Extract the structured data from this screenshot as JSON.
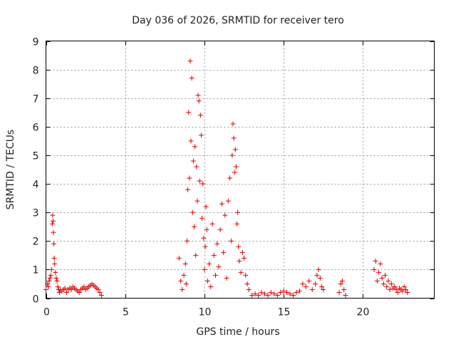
{
  "chart_data": {
    "type": "scatter",
    "title": "Day 036 of 2026, SRMTID for receiver tero",
    "xlabel": "GPS time / hours",
    "ylabel": "SRMTID / TECUs",
    "xlim": [
      0,
      24.5
    ],
    "ylim": [
      0,
      9
    ],
    "xticks": [
      0,
      5,
      10,
      15,
      20
    ],
    "yticks": [
      0,
      1,
      2,
      3,
      4,
      5,
      6,
      7,
      8,
      9
    ],
    "grid": true,
    "legend": "none",
    "marker": "+",
    "color": "#e00000",
    "series": [
      {
        "x": [
          0.0,
          0.1,
          0.15,
          0.2,
          0.25,
          0.3,
          0.35,
          0.4,
          0.42,
          0.45,
          0.47,
          0.5,
          0.52,
          0.55,
          0.6,
          0.65,
          0.7,
          0.75,
          0.8,
          0.85,
          0.9,
          1.0,
          1.1,
          1.2,
          1.3,
          1.4,
          1.5,
          1.6,
          1.7,
          1.8,
          1.9,
          2.0,
          2.1,
          2.2,
          2.3,
          2.4,
          2.5,
          2.6,
          2.7,
          2.8,
          2.9,
          3.0,
          3.1,
          3.2,
          3.3,
          3.4,
          3.5,
          8.4,
          8.5,
          8.6,
          8.7,
          8.8,
          8.85,
          8.9,
          8.95,
          9.0,
          9.05,
          9.1,
          9.15,
          9.2,
          9.25,
          9.3,
          9.35,
          9.4,
          9.45,
          9.5,
          9.55,
          9.6,
          9.65,
          9.7,
          9.75,
          9.8,
          9.85,
          9.9,
          9.95,
          10.0,
          10.05,
          10.1,
          10.15,
          10.2,
          10.3,
          10.4,
          10.5,
          10.6,
          10.7,
          10.8,
          10.9,
          11.0,
          11.1,
          11.2,
          11.3,
          11.4,
          11.5,
          11.6,
          11.7,
          11.75,
          11.8,
          11.85,
          11.9,
          11.95,
          12.0,
          12.05,
          12.1,
          12.15,
          12.2,
          12.3,
          12.4,
          12.5,
          12.6,
          12.7,
          12.8,
          13.0,
          13.2,
          13.4,
          13.6,
          13.8,
          14.0,
          14.2,
          14.4,
          14.6,
          14.8,
          15.0,
          15.2,
          15.4,
          15.6,
          15.8,
          16.0,
          16.2,
          16.4,
          16.6,
          16.8,
          17.0,
          17.1,
          17.2,
          17.3,
          17.4,
          17.5,
          18.5,
          18.6,
          18.7,
          18.8,
          18.9,
          20.7,
          20.8,
          20.9,
          21.0,
          21.1,
          21.2,
          21.3,
          21.4,
          21.5,
          21.6,
          21.7,
          21.8,
          21.9,
          22.0,
          22.1,
          22.2,
          22.3,
          22.4,
          22.5,
          22.6,
          22.7,
          22.8
        ],
        "y": [
          0.3,
          0.5,
          0.4,
          0.6,
          0.7,
          0.8,
          1.0,
          2.6,
          2.9,
          2.7,
          2.3,
          1.9,
          1.4,
          1.2,
          0.9,
          0.7,
          0.6,
          0.4,
          0.3,
          0.2,
          0.3,
          0.25,
          0.3,
          0.35,
          0.2,
          0.3,
          0.35,
          0.3,
          0.4,
          0.35,
          0.3,
          0.25,
          0.2,
          0.3,
          0.35,
          0.4,
          0.3,
          0.35,
          0.4,
          0.45,
          0.5,
          0.45,
          0.4,
          0.35,
          0.3,
          0.2,
          0.1,
          1.4,
          0.6,
          0.3,
          0.8,
          1.2,
          0.5,
          2.0,
          3.8,
          6.5,
          4.2,
          8.3,
          5.5,
          7.7,
          3.0,
          4.8,
          2.5,
          5.3,
          1.5,
          4.6,
          3.4,
          7.1,
          6.9,
          4.1,
          6.4,
          5.7,
          2.8,
          4.0,
          2.1,
          1.0,
          1.8,
          3.2,
          2.4,
          0.6,
          1.2,
          0.4,
          2.6,
          1.5,
          0.8,
          1.9,
          1.1,
          2.4,
          3.3,
          1.6,
          2.9,
          0.7,
          3.4,
          4.2,
          2.0,
          5.0,
          6.1,
          5.6,
          4.4,
          5.2,
          4.6,
          2.6,
          3.0,
          1.8,
          1.3,
          0.9,
          1.6,
          1.4,
          0.8,
          0.5,
          0.3,
          0.1,
          0.15,
          0.1,
          0.2,
          0.15,
          0.1,
          0.2,
          0.15,
          0.1,
          0.2,
          0.25,
          0.2,
          0.15,
          0.1,
          0.2,
          0.25,
          0.5,
          0.4,
          0.6,
          0.3,
          0.5,
          0.8,
          1.0,
          0.7,
          0.4,
          0.3,
          0.2,
          0.5,
          0.6,
          0.3,
          0.1,
          1.0,
          1.3,
          0.6,
          0.9,
          1.2,
          0.7,
          0.5,
          0.8,
          0.4,
          0.6,
          0.3,
          0.5,
          0.35,
          0.4,
          0.3,
          0.2,
          0.35,
          0.3,
          0.25,
          0.4,
          0.3,
          0.2
        ]
      }
    ]
  }
}
